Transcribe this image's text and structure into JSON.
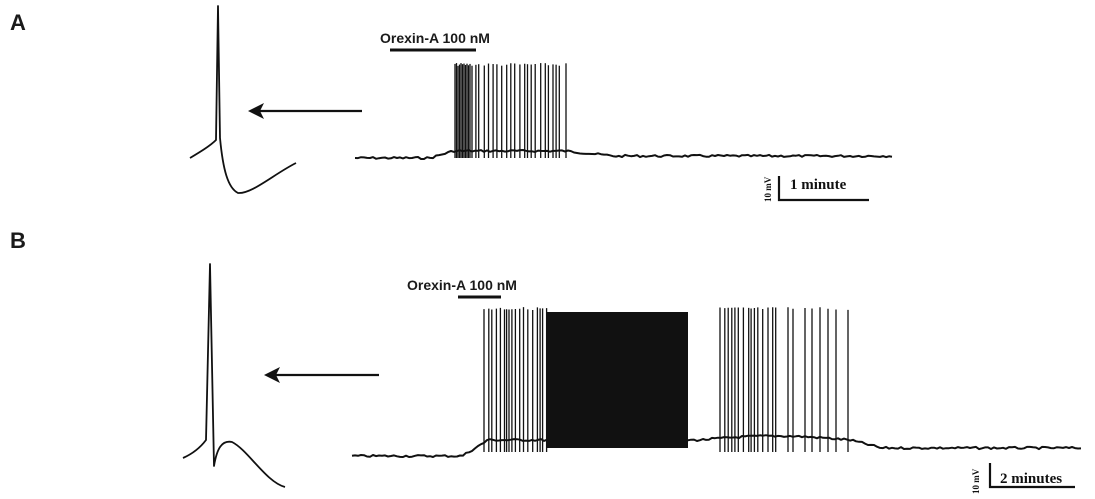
{
  "panels": [
    {
      "letter": "A",
      "drug_label": "Orexin-A 100 nM",
      "scale_voltage": "10 mV",
      "scale_time": "1 minute"
    },
    {
      "letter": "B",
      "drug_label": "Orexin-A 100 nM",
      "scale_voltage": "10 mV",
      "scale_time": "2 minutes"
    }
  ],
  "colors": {
    "trace": "#111111",
    "background": "#ffffff"
  },
  "icons": [
    "left-arrow-icon"
  ]
}
